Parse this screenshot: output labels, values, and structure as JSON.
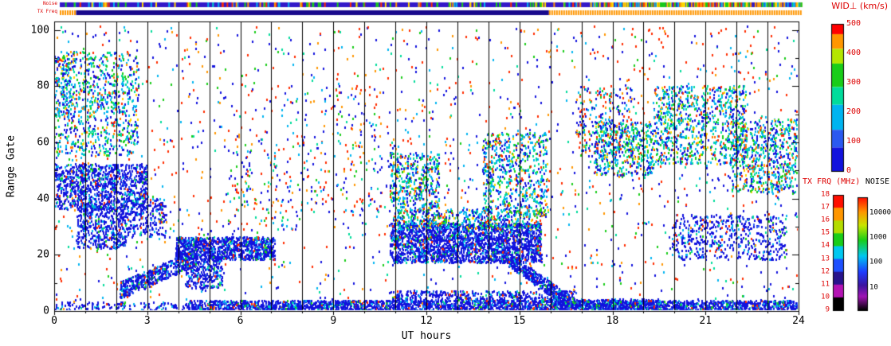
{
  "labels": {
    "wid_title": "WID⊥ (km/s)",
    "txfrq_title": "TX FRQ (MHz)",
    "noise_title": "NOISE",
    "xlabel": "UT hours",
    "ylabel": "Range Gate",
    "strip_noise": "Noise",
    "strip_txfreq": "TX Freq"
  },
  "colors": {
    "accent_red": "#dd0000",
    "axis": "#000000",
    "background": "#ffffff"
  },
  "chart_data": {
    "type": "heatmap",
    "title": "Radar range-time parameter plot (spectral width)",
    "xlabel": "UT hours",
    "ylabel": "Range Gate",
    "xlim": [
      0,
      24
    ],
    "ylim": [
      0,
      103
    ],
    "x_ticks": [
      0,
      3,
      6,
      9,
      12,
      15,
      18,
      21,
      24
    ],
    "y_ticks": [
      0,
      20,
      40,
      60,
      80,
      100
    ],
    "hour_gridline_step": 1,
    "grid": true,
    "colorbars": [
      {
        "id": "wid",
        "title": "WID⊥ (km/s)",
        "ticks": [
          0,
          100,
          200,
          300,
          400,
          500
        ],
        "position": "right-top"
      },
      {
        "id": "txfrq",
        "title": "TX FRQ (MHz)",
        "ticks": [
          9,
          10,
          11,
          12,
          13,
          14,
          15,
          16,
          17,
          18
        ],
        "position": "right-bottom"
      },
      {
        "id": "noise",
        "title": "NOISE",
        "ticks": [
          10,
          100,
          1000,
          10000
        ],
        "scale": "log",
        "position": "right-bottom"
      }
    ],
    "wid_segments": [
      [
        "#ff0000",
        0.07
      ],
      [
        "#ff9600",
        0.1
      ],
      [
        "#b4e600",
        0.1
      ],
      [
        "#19cd19",
        0.16
      ],
      [
        "#00dc9b",
        0.12
      ],
      [
        "#00b4f0",
        0.17
      ],
      [
        "#2b59f0",
        0.12
      ],
      [
        "#1212dd",
        0.16
      ]
    ],
    "tx_segments": [
      "#ff0f00",
      "#ff9600",
      "#b4dc00",
      "#19cd19",
      "#00c8f0",
      "#1e50ff",
      "#28148c",
      "#b414b4",
      "#000000"
    ],
    "noise_gradient": [
      [
        0,
        "#ff0a00"
      ],
      [
        0.13,
        "#ff9600"
      ],
      [
        0.25,
        "#c8e600"
      ],
      [
        0.38,
        "#19cd19"
      ],
      [
        0.52,
        "#00c8f0"
      ],
      [
        0.66,
        "#1e3cff"
      ],
      [
        0.78,
        "#3c14a0"
      ],
      [
        0.88,
        "#a014b4"
      ],
      [
        1,
        "#000000"
      ]
    ],
    "noise_tick_fractions": [
      [
        10000,
        0.14
      ],
      [
        1000,
        0.36
      ],
      [
        100,
        0.58
      ],
      [
        10,
        0.8
      ]
    ],
    "palettes": {
      "blue": [
        [
          "#1212dd",
          0.72
        ],
        [
          "#2b59f0",
          0.1
        ],
        [
          "#00b4f0",
          0.08
        ],
        [
          "#00dc9b",
          0.04
        ],
        [
          "#ff2d00",
          0.03
        ],
        [
          "#19cd19",
          0.03
        ]
      ],
      "cyanmix": [
        [
          "#00b4f0",
          0.26
        ],
        [
          "#00dc9b",
          0.16
        ],
        [
          "#19cd19",
          0.14
        ],
        [
          "#1212dd",
          0.3
        ],
        [
          "#ffd700",
          0.06
        ],
        [
          "#ff7800",
          0.04
        ],
        [
          "#ff2d00",
          0.04
        ]
      ],
      "salt": [
        [
          "#1212dd",
          0.4
        ],
        [
          "#00b4f0",
          0.14
        ],
        [
          "#ff2d00",
          0.2
        ],
        [
          "#ff9600",
          0.08
        ],
        [
          "#19cd19",
          0.09
        ],
        [
          "#00dc9b",
          0.09
        ]
      ],
      "warm": [
        [
          "#ff2d00",
          0.65
        ],
        [
          "#ff9600",
          0.35
        ]
      ]
    },
    "features": [
      {
        "x": [
          4.3,
          24
        ],
        "y": [
          0,
          3.5
        ],
        "n": 2800,
        "p": "blue"
      },
      {
        "x": [
          0,
          4.3
        ],
        "y": [
          0,
          3
        ],
        "n": 130,
        "p": "blue"
      },
      {
        "x": [
          10.8,
          16.8
        ],
        "y": [
          3,
          7
        ],
        "n": 450,
        "p": "blue"
      },
      {
        "x": [
          0,
          2.7
        ],
        "y": [
          55,
          92
        ],
        "n": 800,
        "p": "cyanmix"
      },
      {
        "x": [
          0,
          0.5
        ],
        "y": [
          68,
          90
        ],
        "n": 120,
        "p": "cyanmix"
      },
      {
        "x": [
          0,
          3.0
        ],
        "y": [
          36,
          52
        ],
        "n": 1000,
        "p": "blue"
      },
      {
        "x": [
          0.7,
          2.3
        ],
        "y": [
          22,
          38
        ],
        "n": 450,
        "p": "blue"
      },
      {
        "x": [
          2.3,
          3.6
        ],
        "y": [
          26,
          40
        ],
        "n": 220,
        "p": "blue"
      },
      {
        "diag": true,
        "x": [
          2.1,
          4.6
        ],
        "y": [
          7,
          19
        ],
        "h": 6,
        "n": 520,
        "p": "blue"
      },
      {
        "x": [
          3.9,
          7.1
        ],
        "y": [
          18,
          26
        ],
        "n": 1000,
        "p": "blue"
      },
      {
        "x": [
          4.2,
          5.4
        ],
        "y": [
          8,
          18
        ],
        "n": 260,
        "p": "blue"
      },
      {
        "x": [
          10.8,
          15.7
        ],
        "y": [
          17,
          31
        ],
        "n": 2200,
        "p": "blue"
      },
      {
        "x": [
          10.9,
          15.7
        ],
        "y": [
          29,
          36
        ],
        "n": 520,
        "p": "cyanmix"
      },
      {
        "x": [
          10.8,
          12.4
        ],
        "y": [
          36,
          56
        ],
        "n": 430,
        "p": "cyanmix"
      },
      {
        "x": [
          13.8,
          15.9
        ],
        "y": [
          34,
          63
        ],
        "n": 620,
        "p": "cyanmix"
      },
      {
        "diag": true,
        "x": [
          14.4,
          16.6
        ],
        "y": [
          20,
          3
        ],
        "h": 5,
        "n": 450,
        "p": "blue"
      },
      {
        "x": [
          16.0,
          19.5
        ],
        "y": [
          0,
          4
        ],
        "n": 350,
        "p": "blue"
      },
      {
        "x": [
          17.4,
          19.3
        ],
        "y": [
          48,
          67
        ],
        "n": 480,
        "p": "cyanmix"
      },
      {
        "x": [
          19.3,
          22.3
        ],
        "y": [
          52,
          80
        ],
        "n": 850,
        "p": "cyanmix"
      },
      {
        "x": [
          19.9,
          23.6
        ],
        "y": [
          18,
          34
        ],
        "n": 520,
        "p": "blue"
      },
      {
        "x": [
          21.8,
          24
        ],
        "y": [
          42,
          68
        ],
        "n": 660,
        "p": "cyanmix"
      },
      {
        "x": [
          16.8,
          18.6
        ],
        "y": [
          55,
          80
        ],
        "n": 240,
        "p": "salt"
      },
      {
        "x": [
          7.5,
          10.6
        ],
        "y": [
          35,
          80
        ],
        "n": 160,
        "p": "salt"
      },
      {
        "x": [
          5.5,
          7.6
        ],
        "y": [
          28,
          62
        ],
        "n": 110,
        "p": "salt"
      },
      {
        "x": [
          0,
          24
        ],
        "y": [
          0,
          101
        ],
        "n": 1500,
        "p": "salt"
      },
      {
        "x": [
          0,
          24
        ],
        "y": [
          28,
          101
        ],
        "n": 260,
        "p": "warm"
      }
    ],
    "strips": {
      "noise": {
        "base": "#3318c8",
        "specks": {
          "n_uniform": 170,
          "n_right": 140,
          "right_from": 0.72,
          "palette": [
            [
              "#19cd19",
              0.3
            ],
            [
              "#ffd700",
              0.18
            ],
            [
              "#ff9600",
              0.16
            ],
            [
              "#ff2d00",
              0.16
            ],
            [
              "#00b4f0",
              0.2
            ]
          ]
        }
      },
      "tx": {
        "segments": [
          {
            "f": [
              0,
              0.022
            ],
            "color": "#ff9600",
            "dotted": true
          },
          {
            "f": [
              0.022,
              0.66
            ],
            "color": "#190a8c",
            "dotted": false
          },
          {
            "f": [
              0.66,
              1.0
            ],
            "color": "#ff9600",
            "dotted": true
          }
        ]
      }
    }
  }
}
